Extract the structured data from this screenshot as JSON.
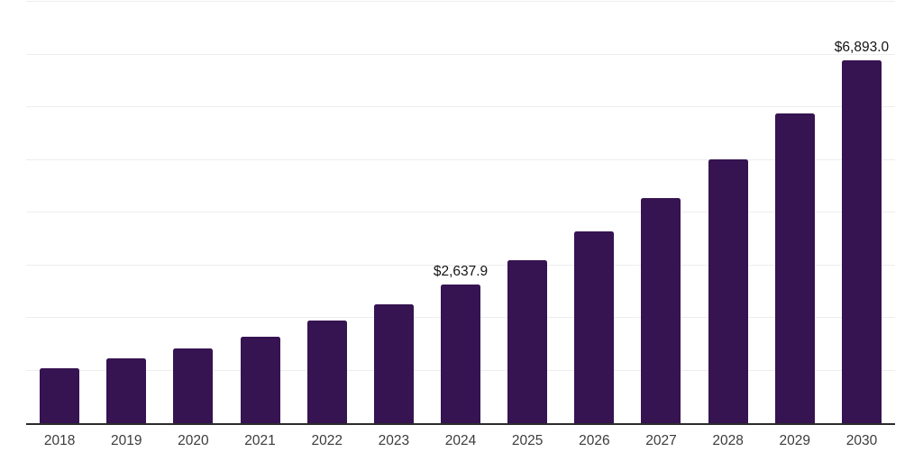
{
  "chart_data": {
    "type": "bar",
    "title": "",
    "xlabel": "",
    "ylabel": "",
    "categories": [
      "2018",
      "2019",
      "2020",
      "2021",
      "2022",
      "2023",
      "2024",
      "2025",
      "2026",
      "2027",
      "2028",
      "2029",
      "2030"
    ],
    "values": [
      1050,
      1233,
      1424,
      1645,
      1952,
      2264,
      2637.9,
      3097,
      3636,
      4269,
      5012,
      5884,
      6893
    ],
    "data_labels": [
      "",
      "",
      "",
      "",
      "",
      "",
      "$2,637.9",
      "",
      "",
      "",
      "",
      "",
      "$6,893.0"
    ],
    "ylim": [
      0,
      8000
    ],
    "gridline_step": 1000,
    "grid": "horizontal-only",
    "legend": "none",
    "bar_color": "#361351",
    "axis_line_color": "#2b2b2b",
    "gridline_color": "#ededed",
    "value_label_color": "#141414",
    "tick_label_color": "#3c3c3c"
  }
}
